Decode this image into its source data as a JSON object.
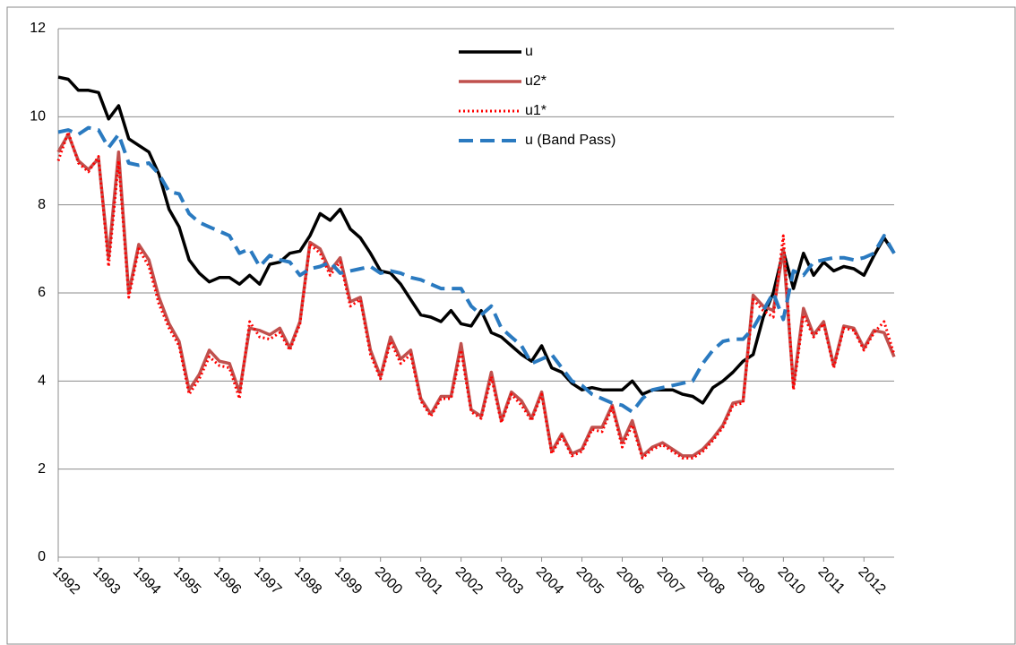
{
  "chart_data": {
    "type": "line",
    "categories": [
      "1992",
      null,
      null,
      null,
      "1993",
      null,
      null,
      null,
      "1994",
      null,
      null,
      null,
      "1995",
      null,
      null,
      null,
      "1996",
      null,
      null,
      null,
      "1997",
      null,
      null,
      null,
      "1998",
      null,
      null,
      null,
      "1999",
      null,
      null,
      null,
      "2000",
      null,
      null,
      null,
      "2001",
      null,
      null,
      null,
      "2002",
      null,
      null,
      null,
      "2003",
      null,
      null,
      null,
      "2004",
      null,
      null,
      null,
      "2005",
      null,
      null,
      null,
      "2006",
      null,
      null,
      null,
      "2007",
      null,
      null,
      null,
      "2008",
      null,
      null,
      null,
      "2009",
      null,
      null,
      null,
      "2010",
      null,
      null,
      null,
      "2011",
      null,
      null,
      null,
      "2012",
      null,
      null,
      null
    ],
    "series": [
      {
        "name": "u",
        "color": "#000000",
        "style": "solid",
        "values": [
          10.9,
          10.85,
          10.6,
          10.6,
          10.55,
          9.95,
          10.25,
          9.5,
          9.35,
          9.2,
          8.7,
          7.9,
          7.5,
          6.75,
          6.45,
          6.25,
          6.35,
          6.35,
          6.2,
          6.4,
          6.2,
          6.65,
          6.7,
          6.9,
          6.95,
          7.3,
          7.8,
          7.65,
          7.9,
          7.45,
          7.25,
          6.9,
          6.5,
          6.45,
          6.2,
          5.85,
          5.5,
          5.45,
          5.35,
          5.6,
          5.3,
          5.25,
          5.6,
          5.1,
          5.0,
          4.8,
          4.6,
          4.45,
          4.8,
          4.3,
          4.2,
          3.95,
          3.8,
          3.85,
          3.8,
          3.8,
          3.8,
          4.0,
          3.7,
          3.8,
          3.8,
          3.8,
          3.7,
          3.65,
          3.5,
          3.85,
          4.0,
          4.2,
          4.45,
          4.6,
          5.45,
          6.0,
          6.95,
          6.1,
          6.9,
          6.4,
          6.7,
          6.5,
          6.6,
          6.55,
          6.4,
          6.85,
          7.25,
          6.9
        ]
      },
      {
        "name": "u2*",
        "color": "#c0504d",
        "style": "solid",
        "values": [
          9.2,
          9.6,
          9.0,
          8.8,
          9.05,
          6.8,
          9.2,
          6.0,
          7.1,
          6.75,
          5.9,
          5.3,
          4.9,
          3.8,
          4.15,
          4.7,
          4.45,
          4.4,
          3.75,
          5.2,
          5.15,
          5.05,
          5.2,
          4.75,
          5.35,
          7.15,
          7.0,
          6.5,
          6.8,
          5.8,
          5.9,
          4.7,
          4.1,
          5.0,
          4.5,
          4.7,
          3.6,
          3.25,
          3.65,
          3.65,
          4.85,
          3.35,
          3.2,
          4.2,
          3.1,
          3.75,
          3.55,
          3.15,
          3.75,
          2.4,
          2.8,
          2.35,
          2.45,
          2.95,
          2.95,
          3.45,
          2.6,
          3.1,
          2.3,
          2.5,
          2.6,
          2.45,
          2.3,
          2.3,
          2.45,
          2.7,
          3.0,
          3.5,
          3.55,
          5.95,
          5.7,
          5.6,
          7.0,
          3.9,
          5.65,
          5.05,
          5.35,
          4.35,
          5.25,
          5.2,
          4.75,
          5.15,
          5.1,
          4.55
        ]
      },
      {
        "name": "u1*",
        "color": "#ff0000",
        "style": "dotted",
        "values": [
          9.0,
          9.65,
          8.95,
          8.75,
          9.1,
          6.6,
          9.0,
          5.9,
          7.0,
          6.6,
          5.75,
          5.2,
          4.8,
          3.7,
          4.05,
          4.55,
          4.35,
          4.3,
          3.6,
          5.35,
          5.0,
          4.95,
          5.1,
          4.7,
          5.3,
          7.1,
          6.9,
          6.4,
          6.7,
          5.7,
          5.85,
          4.6,
          4.05,
          4.9,
          4.4,
          4.6,
          3.55,
          3.2,
          3.6,
          3.6,
          4.7,
          3.3,
          3.15,
          4.1,
          3.05,
          3.7,
          3.45,
          3.1,
          3.7,
          2.35,
          2.75,
          2.3,
          2.4,
          2.9,
          2.85,
          3.4,
          2.5,
          3.0,
          2.25,
          2.45,
          2.55,
          2.4,
          2.25,
          2.25,
          2.4,
          2.65,
          2.95,
          3.45,
          3.5,
          5.85,
          5.6,
          5.45,
          7.3,
          3.8,
          5.5,
          5.0,
          5.3,
          4.3,
          5.2,
          5.15,
          4.7,
          5.1,
          5.35,
          4.6
        ]
      },
      {
        "name": "u (Band Pass)",
        "color": "#2a7ac0",
        "style": "dashed",
        "values": [
          9.65,
          9.7,
          9.6,
          9.75,
          9.7,
          9.3,
          9.6,
          8.95,
          8.9,
          8.95,
          8.7,
          8.3,
          8.25,
          7.8,
          7.6,
          7.5,
          7.4,
          7.3,
          6.9,
          7.0,
          6.6,
          6.85,
          6.75,
          6.7,
          6.4,
          6.55,
          6.6,
          6.7,
          6.45,
          6.5,
          6.55,
          6.6,
          6.45,
          6.5,
          6.45,
          6.35,
          6.3,
          6.2,
          6.1,
          6.1,
          6.1,
          5.7,
          5.5,
          5.7,
          5.2,
          5.0,
          4.8,
          4.4,
          4.5,
          4.6,
          4.3,
          4.0,
          3.9,
          3.7,
          3.6,
          3.5,
          3.45,
          3.3,
          3.6,
          3.8,
          3.85,
          3.9,
          3.95,
          4.0,
          4.4,
          4.7,
          4.9,
          4.95,
          4.95,
          5.2,
          5.6,
          6.0,
          5.4,
          6.5,
          6.4,
          6.7,
          6.75,
          6.8,
          6.8,
          6.75,
          6.8,
          6.9,
          7.3,
          6.9
        ]
      }
    ],
    "ylim": [
      0,
      12
    ],
    "yticks": [
      0,
      2,
      4,
      6,
      8,
      10,
      12
    ],
    "grid": true,
    "legend": "top"
  }
}
